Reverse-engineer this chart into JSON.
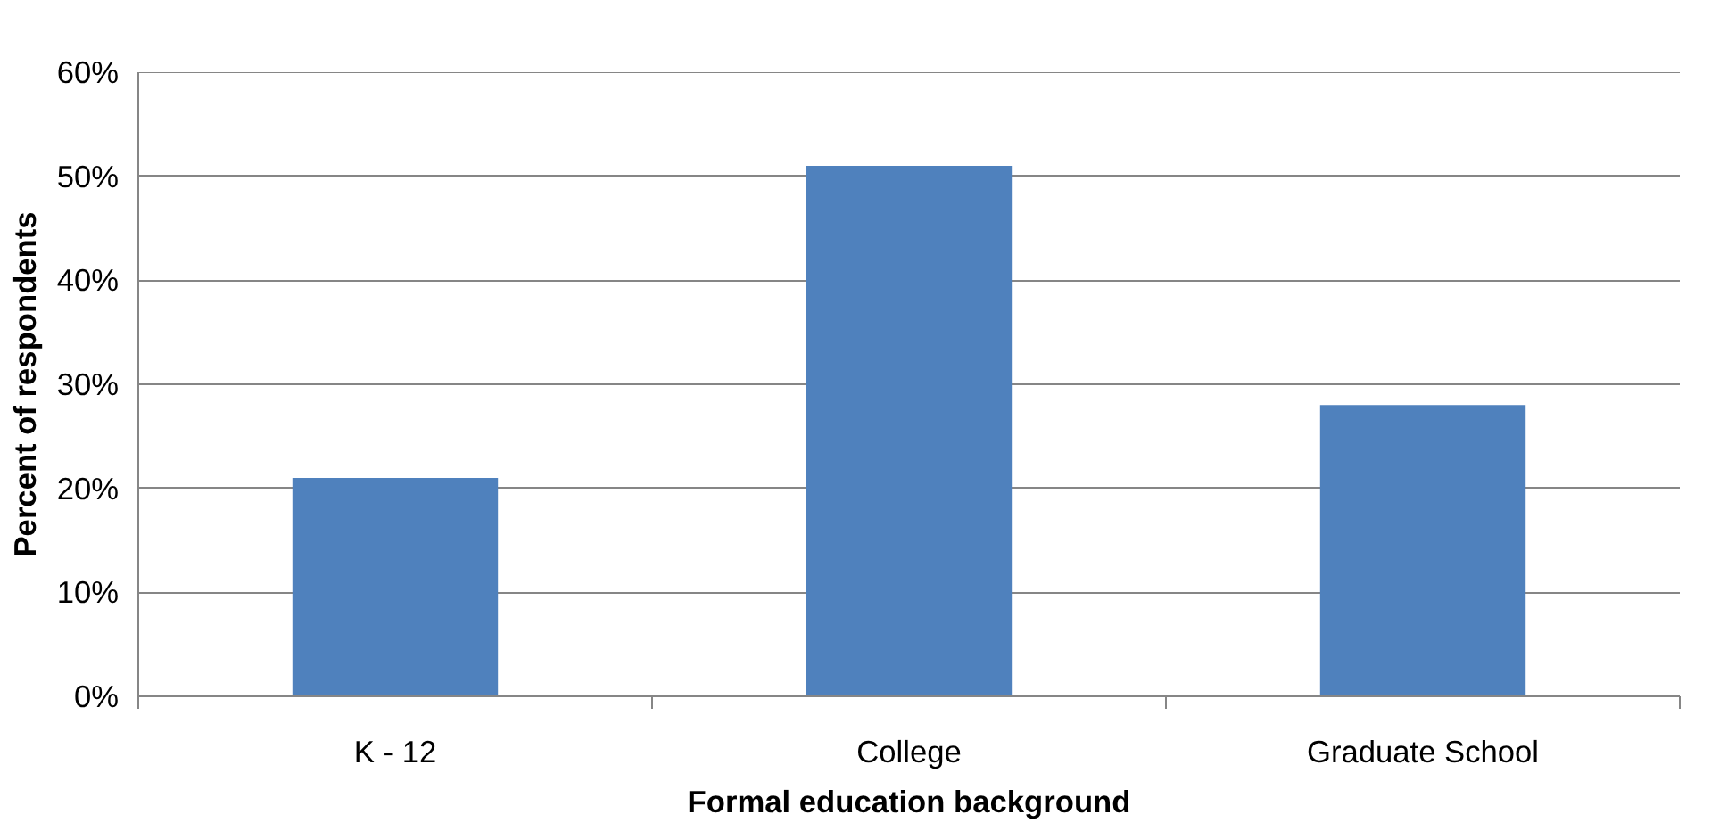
{
  "chart_data": {
    "type": "bar",
    "xlabel": "Formal education background",
    "ylabel": "Percent of respondents",
    "categories": [
      "K - 12",
      "College",
      "Graduate School"
    ],
    "values": [
      21,
      51,
      28
    ],
    "color": "#4f81bd",
    "ylim": [
      0,
      60
    ],
    "yticks": [
      {
        "value": 0,
        "label": "0%"
      },
      {
        "value": 10,
        "label": "10%"
      },
      {
        "value": 20,
        "label": "20%"
      },
      {
        "value": 30,
        "label": "30%"
      },
      {
        "value": 40,
        "label": "40%"
      },
      {
        "value": 50,
        "label": "50%"
      },
      {
        "value": 60,
        "label": "60%"
      }
    ],
    "grid": "y"
  }
}
